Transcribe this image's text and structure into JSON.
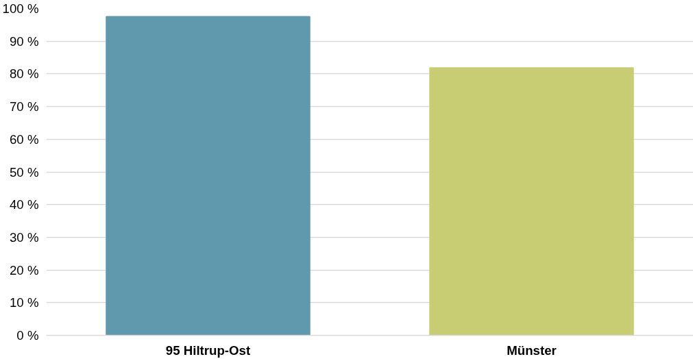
{
  "chart_data": {
    "type": "bar",
    "categories": [
      "95 Hiltrup-Ost",
      "Münster"
    ],
    "values": [
      97.6,
      81.9
    ],
    "colors": [
      "#6098ad",
      "#c8cd73"
    ],
    "ylim": [
      0,
      100
    ],
    "yticks": [
      {
        "value": 0,
        "label": "0 %"
      },
      {
        "value": 10,
        "label": "10 %"
      },
      {
        "value": 20,
        "label": "20 %"
      },
      {
        "value": 30,
        "label": "30 %"
      },
      {
        "value": 40,
        "label": "40 %"
      },
      {
        "value": 50,
        "label": "50 %"
      },
      {
        "value": 60,
        "label": "60 %"
      },
      {
        "value": 70,
        "label": "70 %"
      },
      {
        "value": 80,
        "label": "80 %"
      },
      {
        "value": 90,
        "label": "90 %"
      },
      {
        "value": 100,
        "label": "100 %"
      }
    ],
    "grid": "y"
  }
}
